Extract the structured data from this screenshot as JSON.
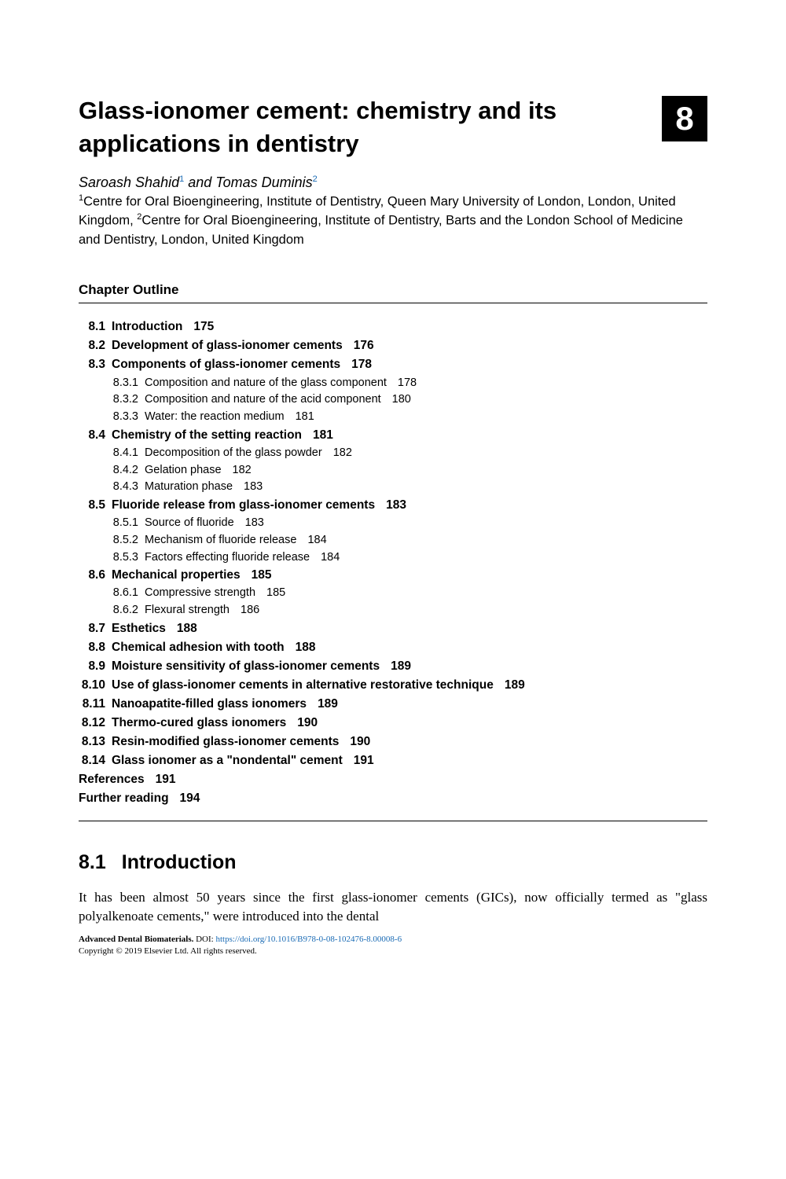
{
  "chapter_number": "8",
  "title": "Glass-ionomer cement: chemistry and its applications in dentistry",
  "authors_html": "Saroash Shahid<sup>1</sup> and Tomas Duminis<sup>2</sup>",
  "author1": "Saroash Shahid",
  "author1_sup": "1",
  "author_sep": " and ",
  "author2": "Tomas Duminis",
  "author2_sup": "2",
  "aff1_sup": "1",
  "aff1": "Centre for Oral Bioengineering, Institute of Dentistry, Queen Mary University of London, London, United Kingdom, ",
  "aff2_sup": "2",
  "aff2": "Centre for Oral Bioengineering, Institute of Dentistry, Barts and the London School of Medicine and Dentistry, London, United Kingdom",
  "outline_heading": "Chapter Outline",
  "outline": [
    {
      "level": 1,
      "num": "8.1",
      "label": "Introduction",
      "page": "175"
    },
    {
      "level": 1,
      "num": "8.2",
      "label": "Development of glass-ionomer cements",
      "page": "176"
    },
    {
      "level": 1,
      "num": "8.3",
      "label": "Components of glass-ionomer cements",
      "page": "178"
    },
    {
      "level": 2,
      "num": "8.3.1",
      "label": "Composition and nature of the glass component",
      "page": "178"
    },
    {
      "level": 2,
      "num": "8.3.2",
      "label": "Composition and nature of the acid component",
      "page": "180"
    },
    {
      "level": 2,
      "num": "8.3.3",
      "label": "Water: the reaction medium",
      "page": "181"
    },
    {
      "level": 1,
      "num": "8.4",
      "label": "Chemistry of the setting reaction",
      "page": "181"
    },
    {
      "level": 2,
      "num": "8.4.1",
      "label": "Decomposition of the glass powder",
      "page": "182"
    },
    {
      "level": 2,
      "num": "8.4.2",
      "label": "Gelation phase",
      "page": "182"
    },
    {
      "level": 2,
      "num": "8.4.3",
      "label": "Maturation phase",
      "page": "183"
    },
    {
      "level": 1,
      "num": "8.5",
      "label": "Fluoride release from glass-ionomer cements",
      "page": "183"
    },
    {
      "level": 2,
      "num": "8.5.1",
      "label": "Source of fluoride",
      "page": "183"
    },
    {
      "level": 2,
      "num": "8.5.2",
      "label": "Mechanism of fluoride release",
      "page": "184"
    },
    {
      "level": 2,
      "num": "8.5.3",
      "label": "Factors effecting fluoride release",
      "page": "184"
    },
    {
      "level": 1,
      "num": "8.6",
      "label": "Mechanical properties",
      "page": "185"
    },
    {
      "level": 2,
      "num": "8.6.1",
      "label": "Compressive strength",
      "page": "185"
    },
    {
      "level": 2,
      "num": "8.6.2",
      "label": "Flexural strength",
      "page": "186"
    },
    {
      "level": 1,
      "num": "8.7",
      "label": "Esthetics",
      "page": "188"
    },
    {
      "level": 1,
      "num": "8.8",
      "label": "Chemical adhesion with tooth",
      "page": "188"
    },
    {
      "level": 1,
      "num": "8.9",
      "label": "Moisture sensitivity of glass-ionomer cements",
      "page": "189"
    },
    {
      "level": 1,
      "num": "8.10",
      "label": "Use of glass-ionomer cements in alternative restorative technique",
      "page": "189"
    },
    {
      "level": 1,
      "num": "8.11",
      "label": "Nanoapatite-filled glass ionomers",
      "page": "189"
    },
    {
      "level": 1,
      "num": "8.12",
      "label": "Thermo-cured glass ionomers",
      "page": "190"
    },
    {
      "level": 1,
      "num": "8.13",
      "label": "Resin-modified glass-ionomer cements",
      "page": "190"
    },
    {
      "level": 1,
      "num": "8.14",
      "label": "Glass ionomer as a \"nondental\" cement",
      "page": "191"
    }
  ],
  "outline_tail": [
    {
      "label": "References",
      "page": "191"
    },
    {
      "label": "Further reading",
      "page": "194"
    }
  ],
  "section_num": "8.1",
  "section_title": "Introduction",
  "body": "It has been almost 50 years since the first glass-ionomer cements (GICs), now officially termed as \"glass polyalkenoate cements,\" were introduced into the dental",
  "footer_book": "Advanced Dental Biomaterials.",
  "footer_doi_label": " DOI: ",
  "footer_doi": "https://doi.org/10.1016/B978-0-08-102476-8.00008-6",
  "footer_copyright": "Copyright © 2019 Elsevier Ltd. All rights reserved.",
  "colors": {
    "link": "#1a6bb5",
    "badge_bg": "#000000",
    "badge_fg": "#ffffff",
    "text": "#000000",
    "page_bg": "#ffffff"
  }
}
